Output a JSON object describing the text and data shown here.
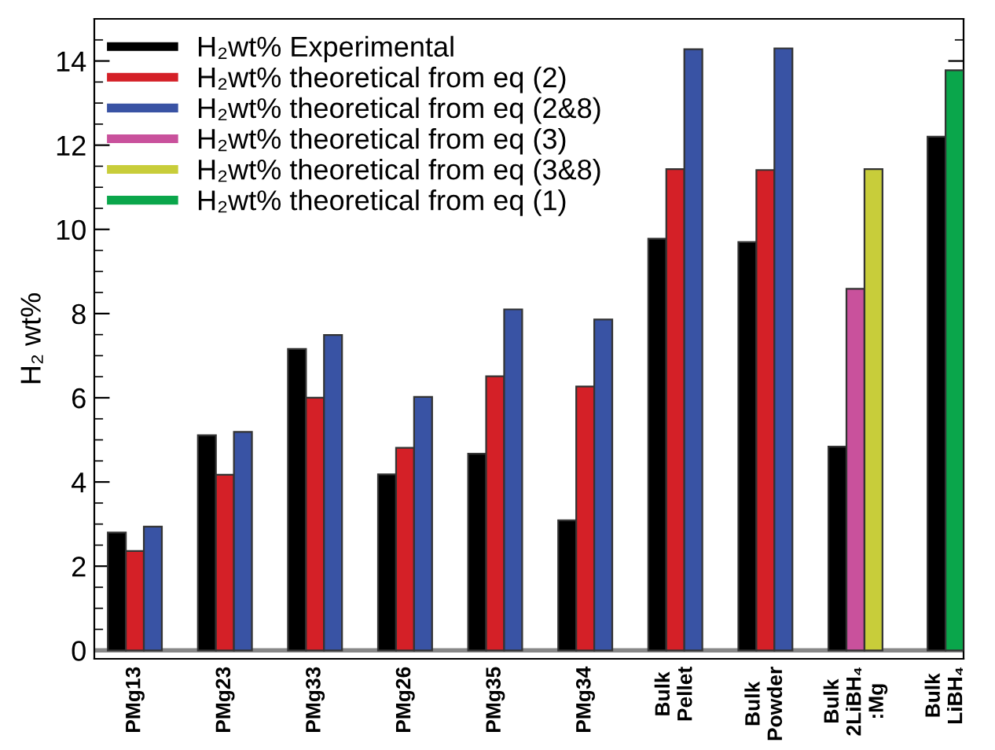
{
  "chart_data": {
    "type": "bar",
    "ylabel": "H₂ wt%",
    "categories": [
      "PMg13",
      "PMg23",
      "PMg33",
      "PMg26",
      "PMg35",
      "PMg34",
      "Bulk\nPellet",
      "Bulk\nPowder",
      "Bulk\n2LiBH₄\n:Mg",
      "Bulk\nLiBH₄"
    ],
    "series": [
      {
        "name": "H₂wt% Experimental",
        "color": "#000000",
        "values": [
          2.8,
          5.11,
          7.16,
          4.18,
          4.67,
          3.09,
          9.78,
          9.7,
          4.84,
          12.2
        ]
      },
      {
        "name": "H₂wt% theoretical from eq (2)",
        "color": "#d42027",
        "values": [
          2.36,
          4.17,
          6.0,
          4.81,
          6.51,
          6.27,
          11.43,
          11.41,
          null,
          null
        ]
      },
      {
        "name": "H₂wt% theoretical from eq (2&8)",
        "color": "#3953a4",
        "values": [
          2.94,
          5.19,
          7.49,
          6.02,
          8.1,
          7.86,
          14.28,
          14.3,
          null,
          null
        ]
      },
      {
        "name": "H₂wt% theoretical from eq (3)",
        "color": "#c9519c",
        "values": [
          null,
          null,
          null,
          null,
          null,
          null,
          null,
          null,
          8.59,
          null
        ]
      },
      {
        "name": "H₂wt% theoretical from eq (3&8)",
        "color": "#c8cd3a",
        "values": [
          null,
          null,
          null,
          null,
          null,
          null,
          null,
          null,
          11.43,
          null
        ]
      },
      {
        "name": "H₂wt% theoretical from eq (1)",
        "color": "#0aa64b",
        "values": [
          null,
          null,
          null,
          null,
          null,
          null,
          null,
          null,
          null,
          13.78
        ]
      }
    ],
    "ylim": [
      -0.2,
      15
    ],
    "yticks": [
      0,
      2,
      4,
      6,
      8,
      10,
      12,
      14
    ],
    "ref_lines": [
      {
        "axis": "y",
        "value": 0,
        "color": "#888888"
      }
    ],
    "grid": false,
    "legend": "top left"
  }
}
